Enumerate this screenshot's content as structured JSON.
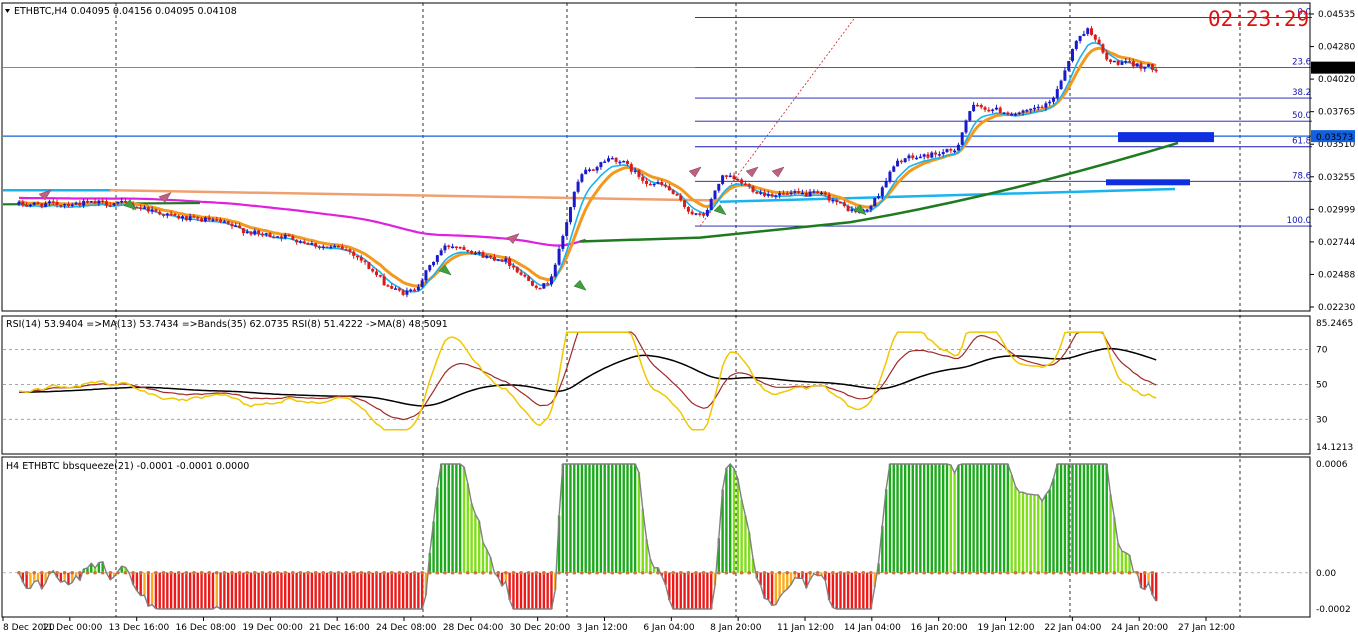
{
  "symbol_header": "ETHBTC,H4  0.04095 0.04156 0.04095 0.04108",
  "clock": "02:23:29",
  "colors": {
    "bull": "#1a1acc",
    "bear": "#dd1a1a",
    "orange_ma": "#f39a1e",
    "fast_ma": "#19b3ee",
    "slow_ma": "#3a6fe0",
    "long_green": "#1f7a1f",
    "long_orange": "#f0a070",
    "magenta": "#e020e0",
    "cyan": "#19b3ee",
    "fib": "#1414b4",
    "rsi_gold": "#f0c800",
    "rsi_brown": "#a02a2a",
    "rsi_black": "#000000",
    "sq_up_strong": "#1aaa1a",
    "sq_up_weak": "#7fde1a",
    "sq_dn_strong": "#ee1a1a",
    "sq_dn_weak": "#ffaa1a",
    "zero_dot": "#d27030",
    "box": "#1030e0"
  },
  "price_axis": {
    "labels": [
      "0.04535",
      "0.04280",
      "0.04020",
      "0.03765",
      "0.03510",
      "0.03255",
      "0.02999",
      "0.02744",
      "0.02488",
      "0.02230"
    ],
    "current_price": "0.04108",
    "line_price": "0.03573"
  },
  "fib_levels": [
    "0.0",
    "23.6",
    "38.2",
    "50.0",
    "61.8",
    "78.6",
    "100.0"
  ],
  "rsi_panel": {
    "header": "RSI(14) 53.9404  =>MA(13) 53.7434  =>Bands(35) 62.0735  RSI(8) 51.4222  ->MA(8) 48.5091",
    "labels": [
      "85.2465",
      "70",
      "50",
      "30",
      "14.1213"
    ]
  },
  "squeeze_panel": {
    "header": "H4 ETHBTC bbsqueeze(21) -0.0001 -0.0001 0.0000",
    "labels": [
      "0.0006",
      "0.00",
      "-0.0002"
    ]
  },
  "time_axis": [
    "8 Dec 2020",
    "11 Dec 00:00",
    "13 Dec 16:00",
    "16 Dec 08:00",
    "19 Dec 00:00",
    "21 Dec 16:00",
    "24 Dec 08:00",
    "28 Dec 04:00",
    "30 Dec 20:00",
    "3 Jan 12:00",
    "6 Jan 04:00",
    "8 Jan 20:00",
    "11 Jan 12:00",
    "14 Jan 04:00",
    "16 Jan 20:00",
    "19 Jan 12:00",
    "22 Jan 04:00",
    "24 Jan 20:00",
    "27 Jan 12:00"
  ],
  "chart_data": {
    "type": "candlestick",
    "price_ylim": [
      0.0223,
      0.04535
    ],
    "price_anchors": [
      [
        "8 Dec",
        0.0304
      ],
      [
        "12 Dec",
        0.0305
      ],
      [
        "16 Dec",
        0.0292
      ],
      [
        "19 Dec",
        0.028
      ],
      [
        "22 Dec",
        0.027
      ],
      [
        "25 Dec",
        0.0235
      ],
      [
        "27 Dec",
        0.0272
      ],
      [
        "29 Dec",
        0.0262
      ],
      [
        "31 Dec",
        0.024
      ],
      [
        "2 Jan",
        0.033
      ],
      [
        "3 Jan",
        0.034
      ],
      [
        "5 Jan",
        0.032
      ],
      [
        "7 Jan",
        0.0295
      ],
      [
        "8 Jan",
        0.0325
      ],
      [
        "10 Jan",
        0.0312
      ],
      [
        "12 Jan",
        0.0312
      ],
      [
        "14 Jan",
        0.0298
      ],
      [
        "16 Jan",
        0.034
      ],
      [
        "18 Jan",
        0.0345
      ],
      [
        "19 Jan",
        0.038
      ],
      [
        "21 Jan",
        0.0375
      ],
      [
        "22 Jan",
        0.038
      ],
      [
        "24 Jan",
        0.044
      ],
      [
        "25 Jan",
        0.0415
      ],
      [
        "27 Jan",
        0.0411
      ]
    ],
    "fib_prices": [
      0.045,
      0.0411,
      0.0387,
      0.0369,
      0.0349,
      0.0322,
      0.0287
    ],
    "rsi_ylim": [
      14.1213,
      85.2465
    ],
    "squeeze_ylim": [
      -0.0002,
      0.0006
    ]
  }
}
